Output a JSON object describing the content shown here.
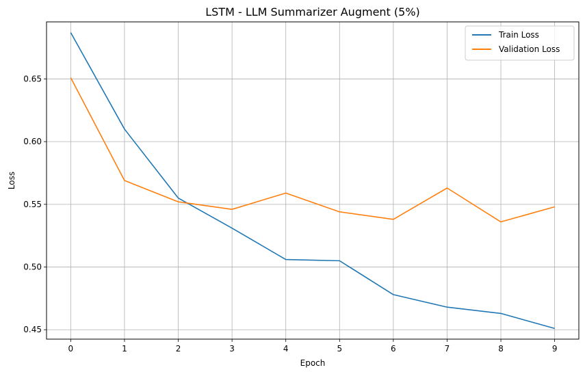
{
  "chart_data": {
    "type": "line",
    "title": "LSTM - LLM Summarizer Augment (5%)",
    "xlabel": "Epoch",
    "ylabel": "Loss",
    "x": [
      0,
      1,
      2,
      3,
      4,
      5,
      6,
      7,
      8,
      9
    ],
    "xticks": [
      "0",
      "1",
      "2",
      "3",
      "4",
      "5",
      "6",
      "7",
      "8",
      "9"
    ],
    "yticks": [
      0.45,
      0.5,
      0.55,
      0.6,
      0.65
    ],
    "ytick_labels": [
      "0.45",
      "0.50",
      "0.55",
      "0.60",
      "0.65"
    ],
    "xlim": [
      -0.45,
      9.45
    ],
    "ylim": [
      0.4425,
      0.6955
    ],
    "grid": true,
    "legend_position": "top-right",
    "series": [
      {
        "name": "Train Loss",
        "color": "#1f77b4",
        "values": [
          0.687,
          0.61,
          0.555,
          0.531,
          0.506,
          0.505,
          0.478,
          0.468,
          0.463,
          0.451
        ]
      },
      {
        "name": "Validation Loss",
        "color": "#ff7f0e",
        "values": [
          0.651,
          0.569,
          0.552,
          0.546,
          0.559,
          0.544,
          0.538,
          0.563,
          0.536,
          0.548
        ]
      }
    ]
  }
}
